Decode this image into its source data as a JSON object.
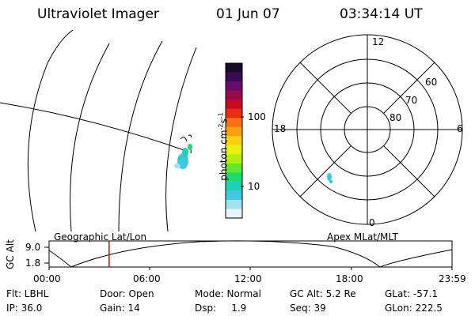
{
  "header": {
    "instrument": "Ultraviolet Imager",
    "date": "01 Jun 07",
    "time": "03:34:14 UT"
  },
  "colorbar": {
    "label": "photon cm",
    "label_sup1": "-2",
    "label_mid": "s",
    "label_sup2": "-1",
    "ticks": [
      "100",
      "10"
    ],
    "colors": [
      "#1a0a2a",
      "#3a0a55",
      "#6a0a6a",
      "#9a0a4a",
      "#c80a20",
      "#e83010",
      "#f87010",
      "#f8a010",
      "#f8d010",
      "#e8f010",
      "#b0f010",
      "#60e830",
      "#20d870",
      "#20d0b8",
      "#40c8e0",
      "#a0e0f0",
      "#e8f4fa"
    ]
  },
  "polar_plot": {
    "mlt_labels": [
      "12",
      "18",
      "6",
      "0"
    ],
    "lat_labels": [
      "60",
      "70",
      "80"
    ]
  },
  "timeline": {
    "ylabel": "GC Alt",
    "y_ticks": [
      "9.0",
      "1.8"
    ],
    "left_label": "Geographic Lat/Lon",
    "right_label": "Apex MLat/MLT",
    "x_ticks": [
      "00:00",
      "06:00",
      "12:00",
      "18:00",
      "23:59"
    ],
    "current_time_fraction": 0.149
  },
  "info": {
    "row1": {
      "flt": "Flt: LBHL",
      "door": "Door: Open",
      "mode": "Mode: Normal",
      "gcalt": "GC Alt: 5.2 Re",
      "glat": "GLat: -57.1"
    },
    "row2": {
      "ip": "IP: 36.0",
      "gain": "Gain: 14",
      "dsp": "Dsp:     1.9",
      "seq": "Seq: 39",
      "glon": "GLon: 222.5"
    }
  }
}
